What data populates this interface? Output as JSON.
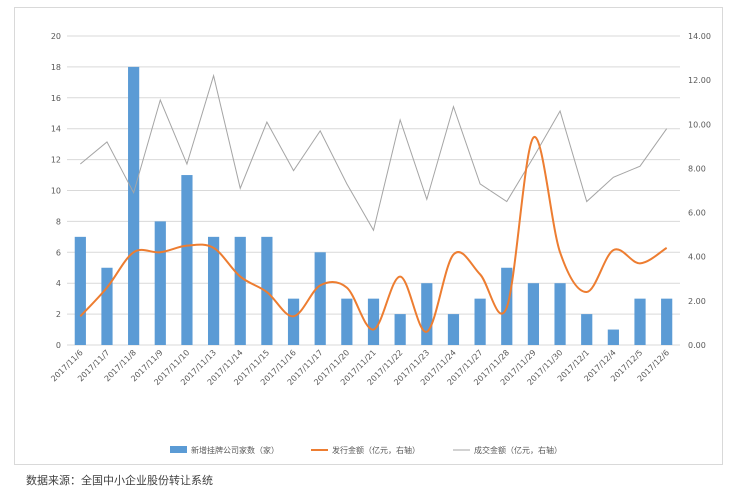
{
  "chart_data": {
    "type": "bar",
    "title": "",
    "categories": [
      "2017/11/6",
      "2017/11/7",
      "2017/11/8",
      "2017/11/9",
      "2017/11/10",
      "2017/11/13",
      "2017/11/14",
      "2017/11/15",
      "2017/11/16",
      "2017/11/17",
      "2017/11/20",
      "2017/11/21",
      "2017/11/22",
      "2017/11/23",
      "2017/11/24",
      "2017/11/27",
      "2017/11/28",
      "2017/11/29",
      "2017/11/30",
      "2017/12/1",
      "2017/12/4",
      "2017/12/5",
      "2017/12/6"
    ],
    "series": [
      {
        "name": "新增挂牌公司家数（家）",
        "type": "bar",
        "axis": "left",
        "color": "#5b9bd5",
        "values": [
          7,
          5,
          18,
          8,
          11,
          7,
          7,
          7,
          3,
          6,
          3,
          3,
          2,
          4,
          2,
          3,
          5,
          4,
          4,
          2,
          1,
          3,
          3
        ]
      },
      {
        "name": "发行金额（亿元，右轴）",
        "type": "line",
        "axis": "right",
        "color": "#ed7d31",
        "values": [
          1.3,
          2.6,
          4.2,
          4.2,
          4.5,
          4.4,
          3.1,
          2.4,
          1.3,
          2.7,
          2.6,
          0.7,
          3.1,
          0.6,
          4.1,
          3.2,
          1.7,
          9.4,
          4.2,
          2.4,
          4.3,
          3.7,
          4.4
        ]
      },
      {
        "name": "成交金额（亿元，右轴）",
        "type": "line",
        "axis": "right",
        "color": "#a5a5a5",
        "values": [
          8.2,
          9.2,
          6.9,
          11.1,
          8.2,
          12.2,
          7.1,
          10.1,
          7.9,
          9.7,
          7.3,
          5.2,
          10.2,
          6.6,
          10.8,
          7.3,
          6.5,
          8.5,
          10.6,
          6.5,
          7.6,
          8.1,
          9.8
        ]
      }
    ],
    "y_left": {
      "min": 0,
      "max": 20,
      "step": 2,
      "ticks": [
        "0",
        "2",
        "4",
        "6",
        "8",
        "10",
        "12",
        "14",
        "16",
        "18",
        "20"
      ]
    },
    "y_right": {
      "min": 0,
      "max": 14,
      "step": 2,
      "ticks": [
        "0.00",
        "2.00",
        "4.00",
        "6.00",
        "8.00",
        "10.00",
        "12.00",
        "14.00"
      ]
    },
    "grid": true,
    "legend_position": "bottom"
  },
  "source_note": "数据来源：全国中小企业股份转让系统"
}
